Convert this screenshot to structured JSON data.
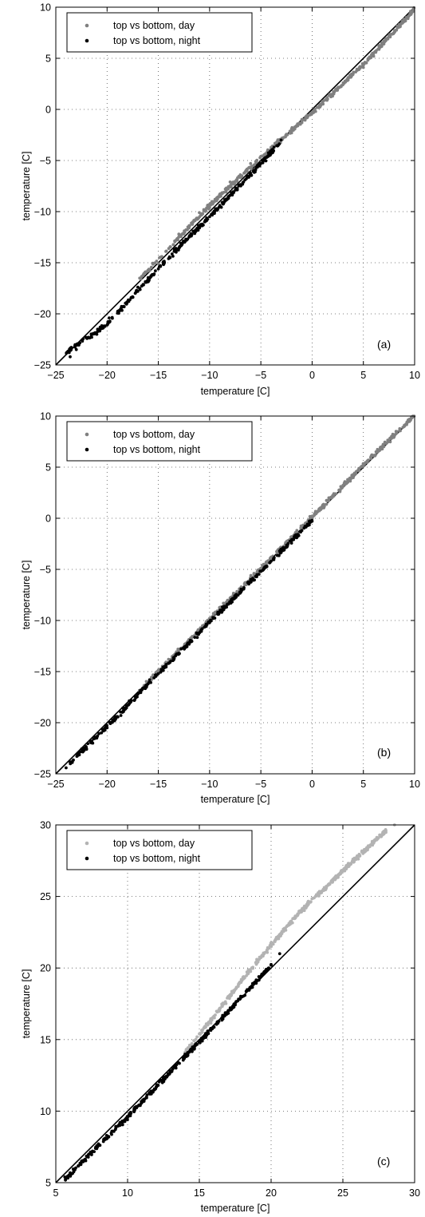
{
  "chart_data": [
    {
      "type": "scatter",
      "panel_label": "(a)",
      "xlabel": "temperature [C]",
      "ylabel": "temperature [C]",
      "xlim": [
        -25,
        10
      ],
      "ylim": [
        -25,
        10
      ],
      "xticks": [
        -25,
        -20,
        -15,
        -10,
        -5,
        0,
        5,
        10
      ],
      "yticks": [
        -25,
        -20,
        -15,
        -10,
        -5,
        0,
        5,
        10
      ],
      "grid": true,
      "grid_style": "dotted",
      "legend_position": "top-left",
      "reference_line": "y = x",
      "series": [
        {
          "name": "top vs bottom, day",
          "color": "#808080",
          "bias": [
            [
              -17,
              0.2
            ],
            [
              -10,
              0.6
            ],
            [
              -5,
              0.3
            ],
            [
              0,
              -0.3
            ],
            [
              5,
              -0.6
            ],
            [
              10,
              -0.2
            ]
          ],
          "points": [
            [
              -16.0,
              -16.8
            ],
            [
              -15.0,
              -15.1
            ],
            [
              -13.0,
              -12.2
            ],
            [
              -12.0,
              -11.6
            ],
            [
              -11.0,
              -10.1
            ],
            [
              -10.0,
              -9.6
            ],
            [
              -9.0,
              -8.3
            ],
            [
              -8.0,
              -7.1
            ],
            [
              -7.0,
              -6.4
            ],
            [
              -6.0,
              -5.3
            ],
            [
              -5.0,
              -4.6
            ],
            [
              -4.0,
              -3.7
            ],
            [
              -3.0,
              -2.9
            ],
            [
              -2.0,
              -2.3
            ],
            [
              -1.0,
              -1.3
            ],
            [
              0.0,
              -0.4
            ],
            [
              1.0,
              0.6
            ],
            [
              2.0,
              1.3
            ],
            [
              3.0,
              2.4
            ],
            [
              4.0,
              3.5
            ],
            [
              5.0,
              4.1
            ],
            [
              6.0,
              5.2
            ],
            [
              7.0,
              6.4
            ],
            [
              8.0,
              7.5
            ],
            [
              9.0,
              8.6
            ],
            [
              9.6,
              9.6
            ]
          ]
        },
        {
          "name": "top vs bottom, night",
          "color": "#000000",
          "bias": [
            [
              -24,
              0.2
            ],
            [
              -20,
              -1.0
            ],
            [
              -17,
              -0.7
            ],
            [
              -13,
              -0.5
            ],
            [
              -10,
              -0.5
            ],
            [
              -7,
              -0.4
            ],
            [
              -5,
              -0.3
            ],
            [
              -3,
              -0.1
            ]
          ],
          "points": [
            [
              -23.6,
              -24.2
            ],
            [
              -23.0,
              -23.5
            ],
            [
              -21.5,
              -22.3
            ],
            [
              -21.0,
              -22.0
            ],
            [
              -19.8,
              -20.4
            ],
            [
              -17.0,
              -17.4
            ],
            [
              -16.0,
              -16.6
            ],
            [
              -15.0,
              -15.6
            ],
            [
              -14.0,
              -14.6
            ],
            [
              -13.0,
              -13.6
            ],
            [
              -12.0,
              -12.5
            ],
            [
              -11.0,
              -11.5
            ],
            [
              -10.0,
              -10.5
            ],
            [
              -9.0,
              -9.4
            ],
            [
              -8.0,
              -8.4
            ],
            [
              -7.0,
              -7.4
            ],
            [
              -6.0,
              -6.3
            ],
            [
              -5.0,
              -5.3
            ],
            [
              -4.0,
              -4.1
            ]
          ]
        }
      ]
    },
    {
      "type": "scatter",
      "panel_label": "(b)",
      "xlabel": "temperature [C]",
      "ylabel": "temperature [C]",
      "xlim": [
        -25,
        10
      ],
      "ylim": [
        -25,
        10
      ],
      "xticks": [
        -25,
        -20,
        -15,
        -10,
        -5,
        0,
        5,
        10
      ],
      "yticks": [
        -25,
        -20,
        -15,
        -10,
        -5,
        0,
        5,
        10
      ],
      "grid": true,
      "grid_style": "dotted",
      "legend_position": "top-left",
      "reference_line": "y = x",
      "series": [
        {
          "name": "top vs bottom, day",
          "color": "#808080",
          "bias": [
            [
              -17,
              0.0
            ],
            [
              -10,
              0.1
            ],
            [
              -5,
              0.1
            ],
            [
              0,
              0.1
            ],
            [
              5,
              0.2
            ],
            [
              10,
              0.1
            ]
          ],
          "points": [
            [
              -16.0,
              -16.0
            ],
            [
              -15.0,
              -14.9
            ],
            [
              -14.0,
              -13.8
            ],
            [
              -13.0,
              -12.9
            ],
            [
              -12.0,
              -11.9
            ],
            [
              -11.0,
              -10.9
            ],
            [
              -10.0,
              -9.8
            ],
            [
              -9.0,
              -8.9
            ],
            [
              -8.0,
              -7.8
            ],
            [
              -7.0,
              -6.9
            ],
            [
              -6.0,
              -5.8
            ],
            [
              -5.0,
              -4.9
            ],
            [
              -4.0,
              -3.8
            ],
            [
              -3.0,
              -2.9
            ],
            [
              -2.0,
              -1.8
            ],
            [
              -1.0,
              -0.9
            ],
            [
              0.0,
              0.2
            ],
            [
              1.0,
              1.1
            ],
            [
              2.0,
              2.2
            ],
            [
              3.0,
              3.1
            ],
            [
              4.0,
              4.2
            ],
            [
              5.0,
              5.1
            ],
            [
              6.0,
              6.1
            ],
            [
              7.0,
              7.0
            ],
            [
              8.0,
              8.0
            ],
            [
              9.0,
              9.1
            ],
            [
              9.6,
              9.6
            ]
          ]
        },
        {
          "name": "top vs bottom, night",
          "color": "#000000",
          "bias": [
            [
              -24,
              -0.3
            ],
            [
              -20,
              -0.4
            ],
            [
              -15,
              -0.2
            ],
            [
              -10,
              -0.2
            ],
            [
              -5,
              -0.2
            ],
            [
              0,
              -0.2
            ]
          ],
          "points": [
            [
              -23.4,
              -23.9
            ],
            [
              -22.0,
              -22.6
            ],
            [
              -20.0,
              -20.5
            ],
            [
              -19.0,
              -19.4
            ],
            [
              -18.0,
              -18.3
            ],
            [
              -17.0,
              -17.2
            ],
            [
              -16.0,
              -16.2
            ],
            [
              -15.0,
              -15.2
            ],
            [
              -14.0,
              -14.2
            ],
            [
              -13.0,
              -13.2
            ],
            [
              -12.0,
              -12.2
            ],
            [
              -11.0,
              -11.2
            ],
            [
              -10.0,
              -10.2
            ],
            [
              -9.0,
              -9.2
            ],
            [
              -8.0,
              -8.2
            ],
            [
              -7.0,
              -7.2
            ],
            [
              -6.0,
              -6.2
            ],
            [
              -5.0,
              -5.2
            ],
            [
              -4.0,
              -4.2
            ],
            [
              -3.0,
              -3.2
            ],
            [
              -2.0,
              -2.2
            ],
            [
              -1.0,
              -1.2
            ],
            [
              0.0,
              -0.3
            ]
          ]
        }
      ]
    },
    {
      "type": "scatter",
      "panel_label": "(c)",
      "xlabel": "temperature [C]",
      "ylabel": "temperature [C]",
      "xlim": [
        5,
        30
      ],
      "ylim": [
        5,
        30
      ],
      "xticks": [
        5,
        10,
        15,
        20,
        25,
        30
      ],
      "yticks": [
        5,
        10,
        15,
        20,
        25,
        30
      ],
      "grid": true,
      "grid_style": "dotted",
      "legend_position": "top-left",
      "reference_line": "y = x",
      "series": [
        {
          "name": "top vs bottom, day",
          "color": "#b3b3b3",
          "bias": [
            [
              14,
              0.1
            ],
            [
              16,
              0.6
            ],
            [
              18,
              1.2
            ],
            [
              20,
              1.6
            ],
            [
              22,
              1.9
            ],
            [
              25,
              1.8
            ],
            [
              28,
              1.6
            ]
          ],
          "points": [
            [
              14.0,
              14.1
            ],
            [
              15.0,
              15.4
            ],
            [
              16.0,
              16.6
            ],
            [
              17.0,
              18.0
            ],
            [
              18.0,
              19.2
            ],
            [
              19.0,
              20.6
            ],
            [
              20.0,
              21.6
            ],
            [
              21.0,
              22.8
            ],
            [
              22.0,
              23.9
            ],
            [
              23.0,
              24.9
            ],
            [
              24.0,
              25.8
            ],
            [
              25.0,
              26.8
            ],
            [
              26.0,
              27.7
            ],
            [
              27.0,
              28.6
            ],
            [
              28.0,
              29.6
            ],
            [
              28.6,
              30.0
            ]
          ]
        },
        {
          "name": "top vs bottom, night",
          "color": "#000000",
          "bias": [
            [
              5.5,
              -0.4
            ],
            [
              8,
              -0.4
            ],
            [
              10,
              -0.4
            ],
            [
              12,
              -0.3
            ],
            [
              14,
              -0.2
            ],
            [
              16,
              -0.1
            ],
            [
              18,
              0.0
            ],
            [
              20,
              0.2
            ]
          ],
          "points": [
            [
              5.8,
              5.4
            ],
            [
              6.3,
              5.9
            ],
            [
              7.0,
              6.6
            ],
            [
              7.5,
              7.1
            ],
            [
              8.0,
              7.6
            ],
            [
              9.0,
              8.6
            ],
            [
              10.0,
              9.6
            ],
            [
              10.5,
              10.1
            ],
            [
              11.0,
              10.6
            ],
            [
              12.0,
              11.7
            ],
            [
              13.0,
              12.8
            ],
            [
              14.0,
              13.8
            ],
            [
              15.0,
              14.9
            ],
            [
              16.0,
              15.9
            ],
            [
              17.0,
              17.0
            ],
            [
              18.0,
              18.0
            ],
            [
              19.0,
              19.1
            ],
            [
              20.0,
              20.2
            ],
            [
              20.6,
              21.0
            ]
          ]
        }
      ]
    }
  ]
}
